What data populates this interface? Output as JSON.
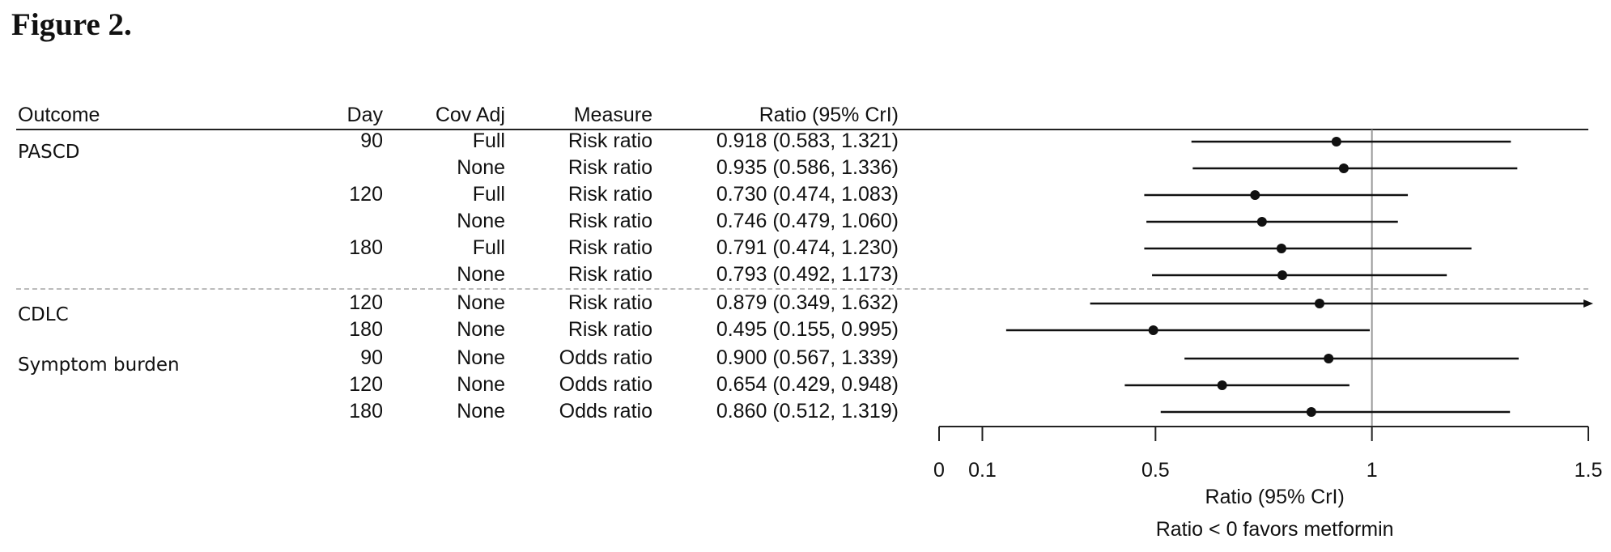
{
  "figure_title": "Figure 2.",
  "table": {
    "headers": {
      "outcome": "Outcome",
      "day": "Day",
      "cov_adj": "Cov Adj",
      "measure": "Measure",
      "ratio": "Ratio (95% CrI)"
    },
    "groups": [
      "PASCD",
      "CDLC",
      "Symptom burden"
    ],
    "rows": [
      {
        "day": "90",
        "cov_adj": "Full",
        "measure": "Risk ratio",
        "ratio": "0.918 (0.583, 1.321)"
      },
      {
        "day": "",
        "cov_adj": "None",
        "measure": "Risk ratio",
        "ratio": "0.935 (0.586, 1.336)"
      },
      {
        "day": "120",
        "cov_adj": "Full",
        "measure": "Risk ratio",
        "ratio": "0.730 (0.474, 1.083)"
      },
      {
        "day": "",
        "cov_adj": "None",
        "measure": "Risk ratio",
        "ratio": "0.746 (0.479, 1.060)"
      },
      {
        "day": "180",
        "cov_adj": "Full",
        "measure": "Risk ratio",
        "ratio": "0.791 (0.474, 1.230)"
      },
      {
        "day": "",
        "cov_adj": "None",
        "measure": "Risk ratio",
        "ratio": "0.793 (0.492, 1.173)"
      },
      {
        "day": "120",
        "cov_adj": "None",
        "measure": "Risk ratio",
        "ratio": "0.879 (0.349, 1.632)"
      },
      {
        "day": "180",
        "cov_adj": "None",
        "measure": "Risk ratio",
        "ratio": "0.495 (0.155, 0.995)"
      },
      {
        "day": "90",
        "cov_adj": "None",
        "measure": "Odds ratio",
        "ratio": "0.900 (0.567, 1.339)"
      },
      {
        "day": "120",
        "cov_adj": "None",
        "measure": "Odds ratio",
        "ratio": "0.654 (0.429, 0.948)"
      },
      {
        "day": "180",
        "cov_adj": "None",
        "measure": "Odds ratio",
        "ratio": "0.860 (0.512, 1.319)"
      }
    ]
  },
  "chart_data": {
    "type": "scatter",
    "subtype": "forest-plot",
    "points": [
      {
        "est": 0.918,
        "lo": 0.583,
        "hi": 1.321
      },
      {
        "est": 0.935,
        "lo": 0.586,
        "hi": 1.336
      },
      {
        "est": 0.73,
        "lo": 0.474,
        "hi": 1.083
      },
      {
        "est": 0.746,
        "lo": 0.479,
        "hi": 1.06
      },
      {
        "est": 0.791,
        "lo": 0.474,
        "hi": 1.23
      },
      {
        "est": 0.793,
        "lo": 0.492,
        "hi": 1.173
      },
      {
        "est": 0.879,
        "lo": 0.349,
        "hi": 1.632
      },
      {
        "est": 0.495,
        "lo": 0.155,
        "hi": 0.995
      },
      {
        "est": 0.9,
        "lo": 0.567,
        "hi": 1.339
      },
      {
        "est": 0.654,
        "lo": 0.429,
        "hi": 0.948
      },
      {
        "est": 0.86,
        "lo": 0.512,
        "hi": 1.319
      }
    ],
    "xlim": [
      0,
      1.5
    ],
    "xticks": [
      0,
      0.1,
      0.5,
      1,
      1.5
    ],
    "xtick_labels": [
      "0",
      "0.1",
      "0.5",
      "1",
      "1.5"
    ],
    "xlabel": "Ratio (95% CrI)",
    "annotation": "Ratio < 0 favors metformin",
    "reference_line": 1,
    "truncated_upper_arrow": true
  }
}
